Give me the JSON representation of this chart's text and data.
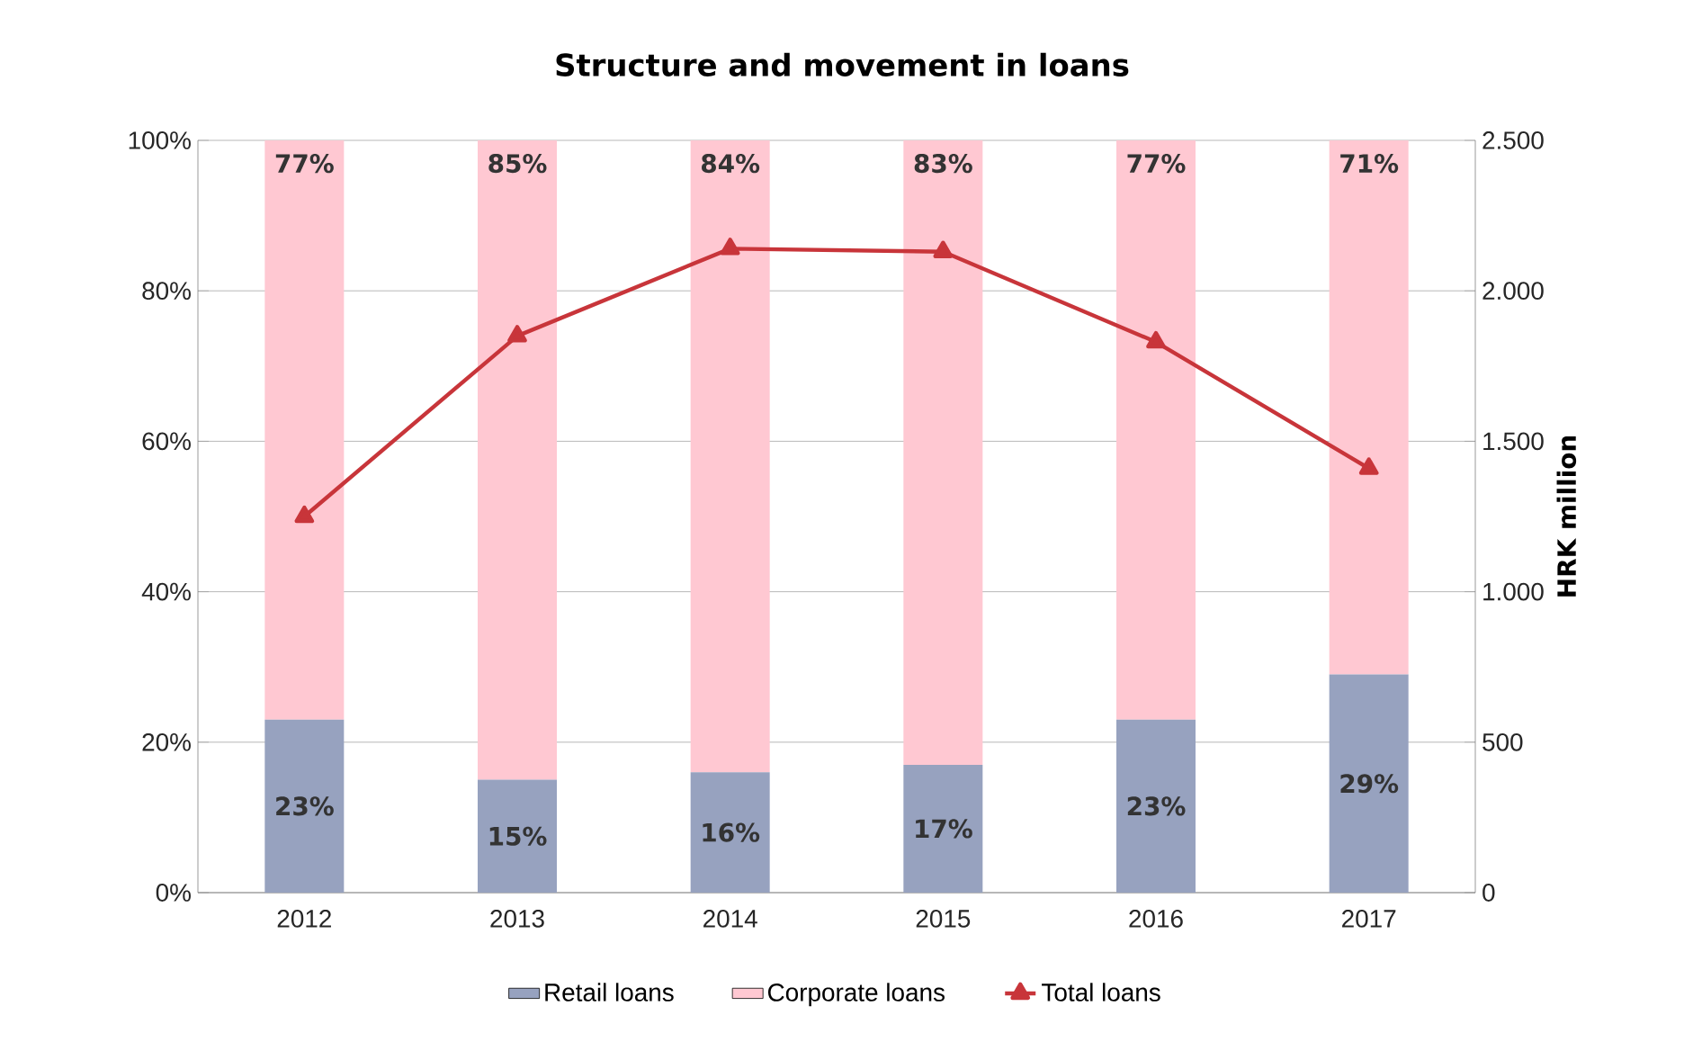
{
  "chart_data": {
    "type": "bar",
    "title": "Structure and movement in loans",
    "y2label": "HRK million",
    "categories": [
      "2012",
      "2013",
      "2014",
      "2015",
      "2016",
      "2017"
    ],
    "stacked": true,
    "series": [
      {
        "name": "Retail loans",
        "type": "bar",
        "color": "#97a2bf",
        "values": [
          23,
          15,
          16,
          17,
          23,
          29
        ],
        "value_labels": [
          "23%",
          "15%",
          "16%",
          "17%",
          "23%",
          "29%"
        ]
      },
      {
        "name": "Corporate loans",
        "type": "bar",
        "color": "#ffc8d2",
        "values": [
          77,
          85,
          84,
          83,
          77,
          71
        ],
        "value_labels": [
          "77%",
          "85%",
          "84%",
          "83%",
          "77%",
          "71%"
        ]
      },
      {
        "name": "Total loans",
        "type": "line",
        "axis": "y2",
        "color": "#c8353a",
        "values": [
          1250,
          1850,
          2140,
          2130,
          1830,
          1410
        ]
      }
    ],
    "ylim": [
      0,
      100
    ],
    "yticks": [
      {
        "value": 0,
        "label": "0%"
      },
      {
        "value": 20,
        "label": "20%"
      },
      {
        "value": 40,
        "label": "40%"
      },
      {
        "value": 60,
        "label": "60%"
      },
      {
        "value": 80,
        "label": "80%"
      },
      {
        "value": 100,
        "label": "100%"
      }
    ],
    "y2lim": [
      0,
      2500
    ],
    "y2ticks": [
      0,
      500,
      {
        "value": 1000,
        "label": "1.000"
      },
      {
        "value": 1500,
        "label": "1.500"
      },
      {
        "value": 2000,
        "label": "2.000"
      },
      {
        "value": 2500,
        "label": "2.500"
      }
    ],
    "grid": "y",
    "legend": "bottom",
    "marker": "triangle",
    "line_style": "solid"
  }
}
